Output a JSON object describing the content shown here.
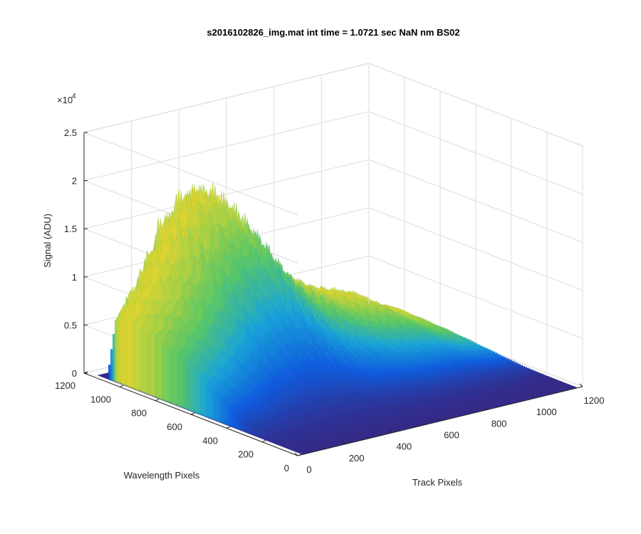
{
  "chart_data": {
    "type": "surface",
    "title": "s2016102826_img.mat int time = 1.0721 sec  NaN nm BS02",
    "xlabel": "Track Pixels",
    "ylabel": "Wavelength Pixels",
    "zlabel": "Signal (ADU)",
    "z_exponent_label": "×10",
    "z_exponent_power": "4",
    "xlim": [
      0,
      1200
    ],
    "ylim": [
      0,
      1200
    ],
    "zlim": [
      0,
      25000
    ],
    "x_ticks": [
      "0",
      "200",
      "400",
      "600",
      "800",
      "1000",
      "1200"
    ],
    "y_ticks": [
      "0",
      "200",
      "400",
      "600",
      "800",
      "1000",
      "1200"
    ],
    "z_ticks": [
      "0",
      "0.5",
      "1",
      "1.5",
      "2",
      "2.5"
    ],
    "z_tick_values": [
      0,
      5000,
      10000,
      15000,
      20000,
      25000
    ],
    "x_tick_values": [
      0,
      200,
      400,
      600,
      800,
      1000,
      1200
    ],
    "y_tick_values": [
      0,
      200,
      400,
      600,
      800,
      1000,
      1200
    ],
    "grid": true,
    "colormap": "parula",
    "colors": {
      "low": "#352a87",
      "mid_low": "#0f5cdd",
      "mid": "#1aa4d8",
      "mid_high": "#5cc862",
      "high": "#f9d626"
    },
    "surface_extent": {
      "x": [
        20,
        1180
      ],
      "y": [
        0,
        1150
      ]
    },
    "track_profile": {
      "x": [
        0,
        100,
        200,
        300,
        400,
        500,
        600,
        700,
        800,
        900,
        1000,
        1100,
        1200
      ],
      "relative_level": [
        0.35,
        0.55,
        0.85,
        1.0,
        0.95,
        0.7,
        0.5,
        0.4,
        0.3,
        0.25,
        0.2,
        0.1,
        0.05
      ]
    },
    "wavelength_profile": {
      "y": [
        0,
        100,
        200,
        300,
        400,
        500,
        600,
        700,
        800,
        900,
        1000,
        1050,
        1100,
        1150
      ],
      "peak_signal": [
        0,
        300,
        900,
        2500,
        5500,
        9000,
        12500,
        15500,
        17500,
        19000,
        20000,
        19500,
        300,
        0
      ]
    }
  }
}
